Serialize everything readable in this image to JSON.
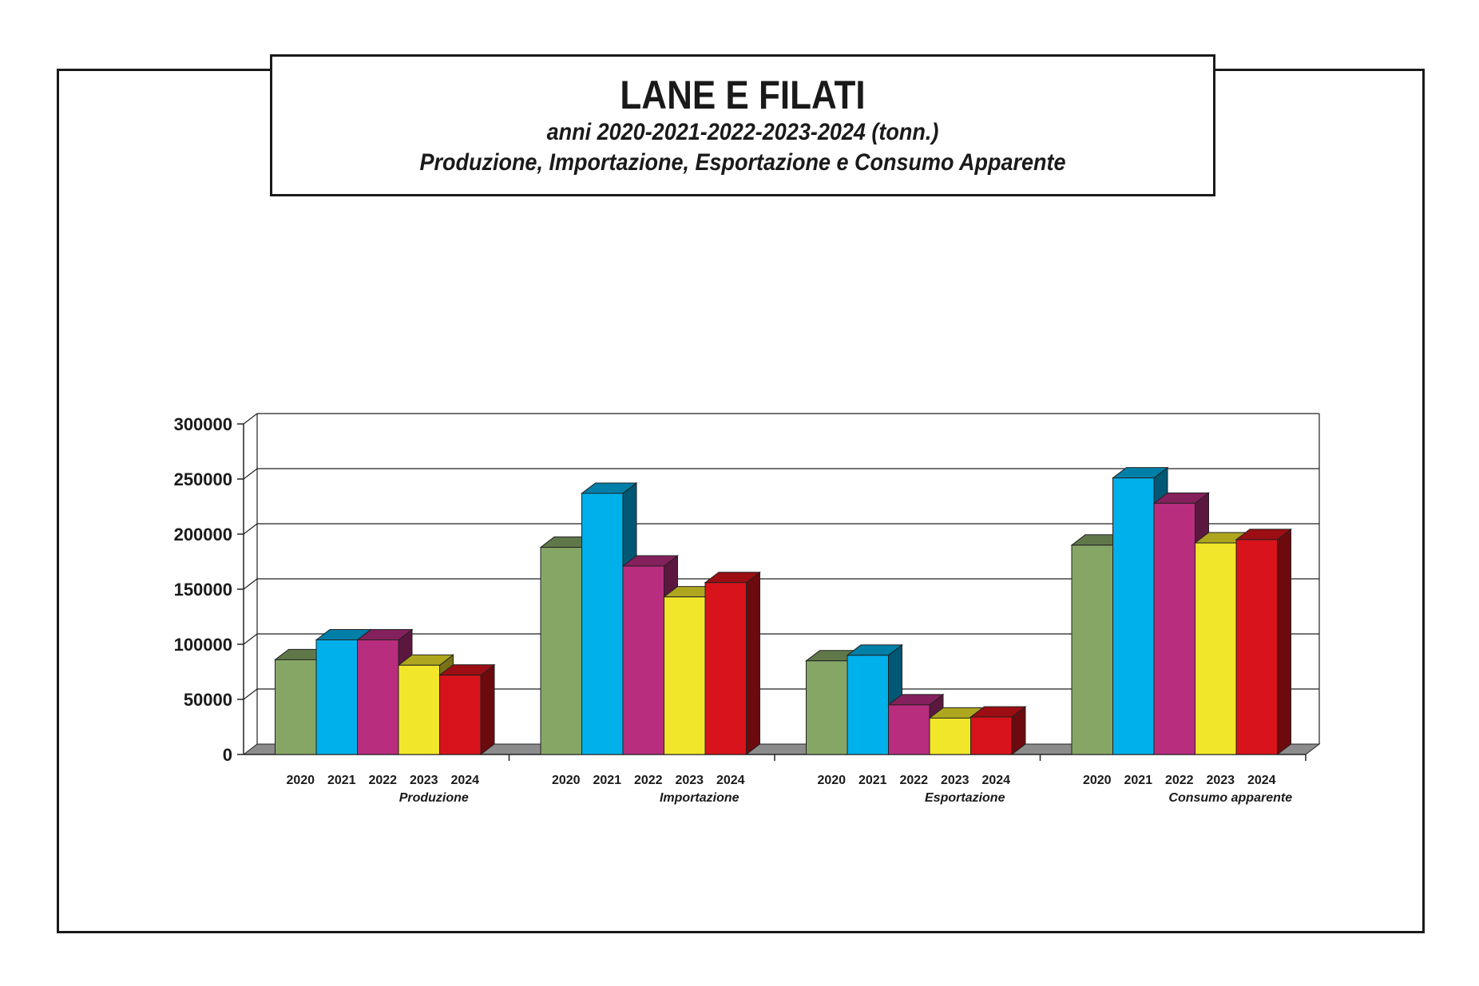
{
  "title": "LANE E FILATI",
  "subtitle_line1": "anni 2020-2021-2022-2023-2024 (tonn.)",
  "subtitle_line2": "Produzione, Importazione, Esportazione e Consumo Apparente",
  "chart_data": {
    "type": "bar",
    "style": "3d-clustered-column",
    "ylim": [
      0,
      300000
    ],
    "yticks": [
      "0",
      "50000",
      "100000",
      "150000",
      "200000",
      "250000",
      "300000"
    ],
    "grid": true,
    "legend": "none",
    "series_colors": [
      "#86a666",
      "#00b0ea",
      "#b82d7e",
      "#f2e62a",
      "#d8131b"
    ],
    "groups": [
      {
        "label": "Produzione",
        "years": [
          "2020",
          "2021",
          "2022",
          "2023",
          "2024"
        ],
        "values": [
          86000,
          104000,
          104000,
          81000,
          72000
        ]
      },
      {
        "label": "Importazione",
        "years": [
          "2020",
          "2021",
          "2022",
          "2023",
          "2024"
        ],
        "values": [
          188000,
          237000,
          171000,
          143000,
          156000
        ]
      },
      {
        "label": "Esportazione",
        "years": [
          "2020",
          "2021",
          "2022",
          "2023",
          "2024"
        ],
        "values": [
          85000,
          90000,
          45000,
          33000,
          34000
        ]
      },
      {
        "label": "Consumo apparente",
        "years": [
          "2020",
          "2021",
          "2022",
          "2023",
          "2024"
        ],
        "values": [
          190000,
          251000,
          228000,
          192000,
          195000
        ]
      }
    ]
  }
}
